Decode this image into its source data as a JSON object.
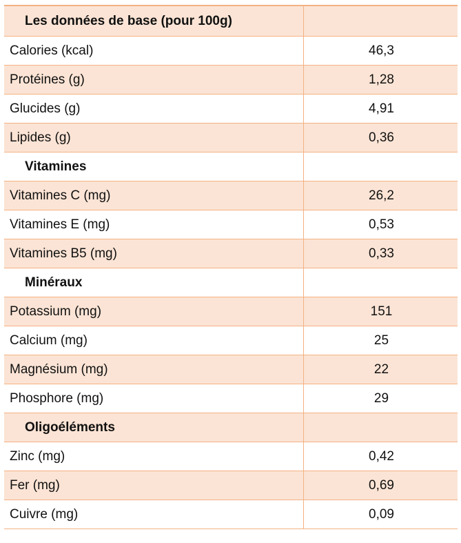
{
  "sections": {
    "base": "Les données de base (pour 100g)",
    "vitamins": "Vitamines",
    "minerals": "Minéraux",
    "trace": "Oligoéléments"
  },
  "rows": {
    "calories": {
      "label": "Calories (kcal)",
      "value": "46,3"
    },
    "proteins": {
      "label": "Protéines (g)",
      "value": "1,28"
    },
    "carbs": {
      "label": "Glucides (g)",
      "value": "4,91"
    },
    "lipids": {
      "label": "Lipides (g)",
      "value": "0,36"
    },
    "vitc": {
      "label": "Vitamines C (mg)",
      "value": "26,2"
    },
    "vite": {
      "label": "Vitamines E (mg)",
      "value": "0,53"
    },
    "vitb5": {
      "label": "Vitamines B5 (mg)",
      "value": "0,33"
    },
    "potassium": {
      "label": "Potassium (mg)",
      "value": "151"
    },
    "calcium": {
      "label": "Calcium (mg)",
      "value": "25"
    },
    "magnesium": {
      "label": "Magnésium (mg)",
      "value": "22"
    },
    "phosphorus": {
      "label": "Phosphore (mg)",
      "value": "29"
    },
    "zinc": {
      "label": "Zinc (mg)",
      "value": "0,42"
    },
    "iron": {
      "label": "Fer (mg)",
      "value": "0,69"
    },
    "copper": {
      "label": "Cuivre (mg)",
      "value": "0,09"
    }
  },
  "colors": {
    "border": "#f4b183",
    "shade": "#fbe4d5"
  }
}
